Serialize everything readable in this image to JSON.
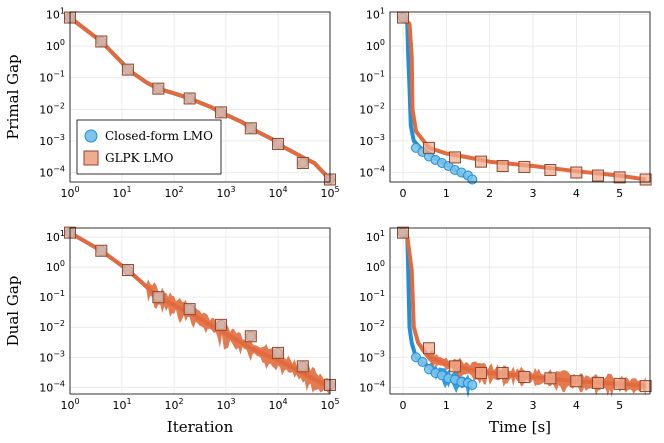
{
  "chart_data": [
    {
      "id": "primal-iter",
      "type": "line",
      "xscale": "log",
      "yscale": "log",
      "xlim": [
        1,
        100000
      ],
      "ylim": [
        5e-05,
        12
      ],
      "xticks": [
        {
          "v": 1,
          "b": "10",
          "e": "0"
        },
        {
          "v": 10,
          "b": "10",
          "e": "1"
        },
        {
          "v": 100,
          "b": "10",
          "e": "2"
        },
        {
          "v": 1000,
          "b": "10",
          "e": "3"
        },
        {
          "v": 10000,
          "b": "10",
          "e": "4"
        },
        {
          "v": 100000,
          "b": "10",
          "e": "5"
        }
      ],
      "yticks": [
        {
          "v": 0.0001,
          "b": "10",
          "e": "−4"
        },
        {
          "v": 0.001,
          "b": "10",
          "e": "−3"
        },
        {
          "v": 0.01,
          "b": "10",
          "e": "−2"
        },
        {
          "v": 0.1,
          "b": "10",
          "e": "−1"
        },
        {
          "v": 1,
          "b": "10",
          "e": "0"
        },
        {
          "v": 10,
          "b": "10",
          "e": "1"
        }
      ],
      "xlabel": "",
      "ylabel": "Primal Gap",
      "legend": "bottom-left",
      "series": [
        {
          "name": "Closed-form LMO",
          "line": [
            [
              1,
              8
            ],
            [
              4,
              1.4
            ],
            [
              10,
              0.3
            ],
            [
              13,
              0.18
            ],
            [
              30,
              0.07
            ],
            [
              50,
              0.045
            ],
            [
              100,
              0.032
            ],
            [
              200,
              0.022
            ],
            [
              500,
              0.012
            ],
            [
              800,
              0.008
            ],
            [
              2000,
              0.004
            ],
            [
              3000,
              0.0025
            ],
            [
              8000,
              0.0011
            ],
            [
              10000,
              0.0008
            ],
            [
              30000,
              0.0003
            ],
            [
              50000,
              0.0002
            ],
            [
              100000,
              6e-05
            ]
          ],
          "markers": [
            [
              1,
              8
            ],
            [
              4,
              1.4
            ],
            [
              13,
              0.18
            ],
            [
              50,
              0.045
            ],
            [
              200,
              0.022
            ],
            [
              800,
              0.008
            ],
            [
              3000,
              0.0025
            ],
            [
              10000,
              0.0008
            ],
            [
              30000,
              0.0002
            ],
            [
              100000,
              6e-05
            ]
          ]
        },
        {
          "name": "GLPK LMO",
          "line": [
            [
              1,
              8
            ],
            [
              4,
              1.4
            ],
            [
              10,
              0.3
            ],
            [
              13,
              0.18
            ],
            [
              30,
              0.07
            ],
            [
              50,
              0.045
            ],
            [
              100,
              0.032
            ],
            [
              200,
              0.022
            ],
            [
              500,
              0.012
            ],
            [
              800,
              0.008
            ],
            [
              2000,
              0.004
            ],
            [
              3000,
              0.0025
            ],
            [
              8000,
              0.0011
            ],
            [
              10000,
              0.0008
            ],
            [
              30000,
              0.0003
            ],
            [
              50000,
              0.0002
            ],
            [
              100000,
              6e-05
            ]
          ],
          "markers": [
            [
              1,
              8
            ],
            [
              4,
              1.4
            ],
            [
              13,
              0.18
            ],
            [
              50,
              0.045
            ],
            [
              200,
              0.022
            ],
            [
              800,
              0.008
            ],
            [
              3000,
              0.0025
            ],
            [
              10000,
              0.0008
            ],
            [
              30000,
              0.0002
            ],
            [
              100000,
              6e-05
            ]
          ]
        }
      ]
    },
    {
      "id": "primal-time",
      "type": "line",
      "xscale": "linear",
      "yscale": "log",
      "xlim": [
        -0.3,
        5.7
      ],
      "ylim": [
        5e-05,
        12
      ],
      "xticks": [
        {
          "v": 0,
          "t": "0"
        },
        {
          "v": 1,
          "t": "1"
        },
        {
          "v": 2,
          "t": "2"
        },
        {
          "v": 3,
          "t": "3"
        },
        {
          "v": 4,
          "t": "4"
        },
        {
          "v": 5,
          "t": "5"
        }
      ],
      "yticks": [
        {
          "v": 0.0001,
          "b": "10",
          "e": "−4"
        },
        {
          "v": 0.001,
          "b": "10",
          "e": "−3"
        },
        {
          "v": 0.01,
          "b": "10",
          "e": "−2"
        },
        {
          "v": 0.1,
          "b": "10",
          "e": "−1"
        },
        {
          "v": 1,
          "b": "10",
          "e": "0"
        },
        {
          "v": 10,
          "b": "10",
          "e": "1"
        }
      ],
      "xlabel": "",
      "ylabel": "",
      "series": [
        {
          "name": "Closed-form LMO",
          "line": [
            [
              0,
              8
            ],
            [
              0.05,
              7
            ],
            [
              0.1,
              5
            ],
            [
              0.12,
              0.5
            ],
            [
              0.15,
              0.05
            ],
            [
              0.18,
              0.003
            ],
            [
              0.25,
              0.001
            ],
            [
              0.4,
              0.0006
            ],
            [
              0.6,
              0.0004
            ],
            [
              0.8,
              0.00025
            ],
            [
              1.0,
              0.00018
            ],
            [
              1.2,
              0.00012
            ],
            [
              1.4,
              8e-05
            ],
            [
              1.6,
              6e-05
            ]
          ],
          "markers": [
            [
              0,
              8
            ],
            [
              0.3,
              0.0006
            ],
            [
              0.45,
              0.00045
            ],
            [
              0.6,
              0.00032
            ],
            [
              0.75,
              0.00025
            ],
            [
              0.9,
              0.0002
            ],
            [
              1.05,
              0.00016
            ],
            [
              1.2,
              0.00012
            ],
            [
              1.35,
              0.0001
            ],
            [
              1.5,
              8e-05
            ],
            [
              1.6,
              6e-05
            ]
          ]
        },
        {
          "name": "GLPK LMO",
          "line": [
            [
              0,
              8
            ],
            [
              0.05,
              7
            ],
            [
              0.15,
              5
            ],
            [
              0.2,
              0.5
            ],
            [
              0.22,
              0.01
            ],
            [
              0.3,
              0.002
            ],
            [
              0.6,
              0.0006
            ],
            [
              1.0,
              0.0004
            ],
            [
              1.5,
              0.0003
            ],
            [
              2.0,
              0.00022
            ],
            [
              3.0,
              0.00016
            ],
            [
              4.0,
              0.00011
            ],
            [
              5.0,
              8e-05
            ],
            [
              5.6,
              6e-05
            ]
          ],
          "markers": [
            [
              0,
              8
            ],
            [
              0.6,
              0.0006
            ],
            [
              1.2,
              0.0003
            ],
            [
              1.8,
              0.00022
            ],
            [
              2.3,
              0.00016
            ],
            [
              2.8,
              0.00015
            ],
            [
              3.4,
              0.00012
            ],
            [
              4.0,
              0.0001
            ],
            [
              4.5,
              8e-05
            ],
            [
              5.0,
              7e-05
            ],
            [
              5.6,
              6e-05
            ]
          ]
        }
      ]
    },
    {
      "id": "dual-iter",
      "type": "line",
      "xscale": "log",
      "yscale": "log",
      "xlim": [
        1,
        100000
      ],
      "ylim": [
        6e-05,
        20
      ],
      "xticks": [
        {
          "v": 1,
          "b": "10",
          "e": "0"
        },
        {
          "v": 10,
          "b": "10",
          "e": "1"
        },
        {
          "v": 100,
          "b": "10",
          "e": "2"
        },
        {
          "v": 1000,
          "b": "10",
          "e": "3"
        },
        {
          "v": 10000,
          "b": "10",
          "e": "4"
        },
        {
          "v": 100000,
          "b": "10",
          "e": "5"
        }
      ],
      "yticks": [
        {
          "v": 0.0001,
          "b": "10",
          "e": "−4"
        },
        {
          "v": 0.001,
          "b": "10",
          "e": "−3"
        },
        {
          "v": 0.01,
          "b": "10",
          "e": "−2"
        },
        {
          "v": 0.1,
          "b": "10",
          "e": "−1"
        },
        {
          "v": 1,
          "b": "10",
          "e": "0"
        },
        {
          "v": 10,
          "b": "10",
          "e": "1"
        }
      ],
      "xlabel": "Iteration",
      "ylabel": "Dual Gap",
      "series": [
        {
          "name": "Closed-form LMO",
          "line": [
            [
              1,
              14
            ],
            [
              4,
              3.5
            ],
            [
              13,
              0.8
            ],
            [
              50,
              0.1
            ],
            [
              200,
              0.03
            ],
            [
              1000,
              0.006
            ],
            [
              3000,
              0.002
            ],
            [
              10000,
              0.0008
            ],
            [
              30000,
              0.0003
            ],
            [
              100000,
              0.0001
            ]
          ],
          "markers": [
            [
              1,
              14
            ],
            [
              4,
              3.5
            ],
            [
              13,
              0.8
            ],
            [
              50,
              0.1
            ],
            [
              200,
              0.04
            ],
            [
              800,
              0.012
            ],
            [
              3000,
              0.005
            ],
            [
              10000,
              0.0014
            ],
            [
              30000,
              0.0005
            ],
            [
              100000,
              0.00012
            ]
          ]
        },
        {
          "name": "GLPK LMO",
          "line": [
            [
              1,
              14
            ],
            [
              4,
              3.5
            ],
            [
              13,
              0.8
            ],
            [
              50,
              0.1
            ],
            [
              200,
              0.03
            ],
            [
              1000,
              0.006
            ],
            [
              3000,
              0.002
            ],
            [
              10000,
              0.0008
            ],
            [
              30000,
              0.0003
            ],
            [
              100000,
              0.0001
            ]
          ],
          "markers": [
            [
              1,
              14
            ],
            [
              4,
              3.5
            ],
            [
              13,
              0.8
            ],
            [
              50,
              0.1
            ],
            [
              200,
              0.04
            ],
            [
              800,
              0.012
            ],
            [
              3000,
              0.005
            ],
            [
              10000,
              0.0014
            ],
            [
              30000,
              0.0005
            ],
            [
              100000,
              0.00012
            ]
          ]
        }
      ]
    },
    {
      "id": "dual-time",
      "type": "line",
      "xscale": "linear",
      "yscale": "log",
      "xlim": [
        -0.3,
        5.7
      ],
      "ylim": [
        6e-05,
        20
      ],
      "xticks": [
        {
          "v": 0,
          "t": "0"
        },
        {
          "v": 1,
          "t": "1"
        },
        {
          "v": 2,
          "t": "2"
        },
        {
          "v": 3,
          "t": "3"
        },
        {
          "v": 4,
          "t": "4"
        },
        {
          "v": 5,
          "t": "5"
        }
      ],
      "yticks": [
        {
          "v": 0.0001,
          "b": "10",
          "e": "−4"
        },
        {
          "v": 0.001,
          "b": "10",
          "e": "−3"
        },
        {
          "v": 0.01,
          "b": "10",
          "e": "−2"
        },
        {
          "v": 0.1,
          "b": "10",
          "e": "−1"
        },
        {
          "v": 1,
          "b": "10",
          "e": "0"
        },
        {
          "v": 10,
          "b": "10",
          "e": "1"
        }
      ],
      "xlabel": "Time [s]",
      "ylabel": "",
      "series": [
        {
          "name": "Closed-form LMO",
          "line": [
            [
              0,
              14
            ],
            [
              0.1,
              10
            ],
            [
              0.12,
              0.8
            ],
            [
              0.15,
              0.01
            ],
            [
              0.2,
              0.003
            ],
            [
              0.3,
              0.001
            ],
            [
              0.5,
              0.0006
            ],
            [
              0.8,
              0.0003
            ],
            [
              1.1,
              0.0002
            ],
            [
              1.4,
              0.00015
            ],
            [
              1.6,
              0.00012
            ]
          ],
          "markers": [
            [
              0,
              14
            ],
            [
              0.3,
              0.001
            ],
            [
              0.45,
              0.0007
            ],
            [
              0.6,
              0.0004
            ],
            [
              0.75,
              0.0003
            ],
            [
              0.9,
              0.00025
            ],
            [
              1.05,
              0.0002
            ],
            [
              1.2,
              0.00018
            ],
            [
              1.35,
              0.00015
            ],
            [
              1.5,
              0.00014
            ],
            [
              1.6,
              0.00012
            ]
          ]
        },
        {
          "name": "GLPK LMO",
          "line": [
            [
              0,
              14
            ],
            [
              0.1,
              10
            ],
            [
              0.2,
              0.8
            ],
            [
              0.25,
              0.01
            ],
            [
              0.35,
              0.003
            ],
            [
              0.6,
              0.001
            ],
            [
              1.0,
              0.0006
            ],
            [
              1.5,
              0.0004
            ],
            [
              2.0,
              0.0003
            ],
            [
              3.0,
              0.00022
            ],
            [
              4.0,
              0.00016
            ],
            [
              5.0,
              0.00013
            ],
            [
              5.6,
              0.00011
            ]
          ],
          "markers": [
            [
              0,
              14
            ],
            [
              0.6,
              0.002
            ],
            [
              1.2,
              0.0005
            ],
            [
              1.8,
              0.0003
            ],
            [
              2.3,
              0.0003
            ],
            [
              2.8,
              0.00022
            ],
            [
              3.4,
              0.0002
            ],
            [
              4.0,
              0.00016
            ],
            [
              4.5,
              0.00014
            ],
            [
              5.0,
              0.00013
            ],
            [
              5.6,
              0.00011
            ]
          ]
        }
      ]
    }
  ],
  "legend": {
    "items": [
      "Closed-form LMO",
      "GLPK LMO"
    ]
  },
  "colors": {
    "closed_form": "#1e90d8",
    "closed_form_fill": "#7ec3ea",
    "glpk": "#e26a3d",
    "glpk_fill": "#efac90"
  }
}
